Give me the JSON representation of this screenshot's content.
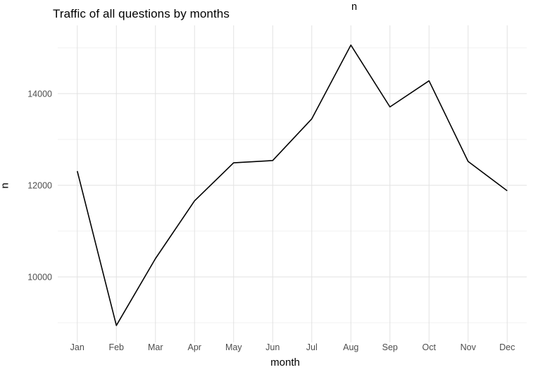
{
  "chart": {
    "title": "Traffic of all questions by months",
    "top_label": "n",
    "xlabel": "month",
    "ylabel": "n"
  },
  "chart_data": {
    "type": "line",
    "title": "Traffic of all questions by months",
    "xlabel": "month",
    "ylabel": "n",
    "legend_title": "n",
    "legend_position": "top",
    "categories": [
      "Jan",
      "Feb",
      "Mar",
      "Apr",
      "May",
      "Jun",
      "Jul",
      "Aug",
      "Sep",
      "Oct",
      "Nov",
      "Dec"
    ],
    "series": [
      {
        "name": "n",
        "values": [
          12310,
          8940,
          10400,
          11660,
          12490,
          12540,
          13450,
          15060,
          13710,
          14280,
          12520,
          11880
        ]
      }
    ],
    "yticks_major": [
      10000,
      12000,
      14000
    ],
    "yticks_minor": [
      9000,
      11000,
      13000,
      15000
    ],
    "ylim": [
      8570,
      15490
    ],
    "grid": "major-and-minor",
    "colors": {
      "line": "#000000",
      "grid_major": "#e2e2e2",
      "grid_minor": "#f0f0f0",
      "tick_label": "#4d4d4d",
      "axis_title": "#000000",
      "title": "#000000",
      "background": "#ffffff"
    }
  }
}
